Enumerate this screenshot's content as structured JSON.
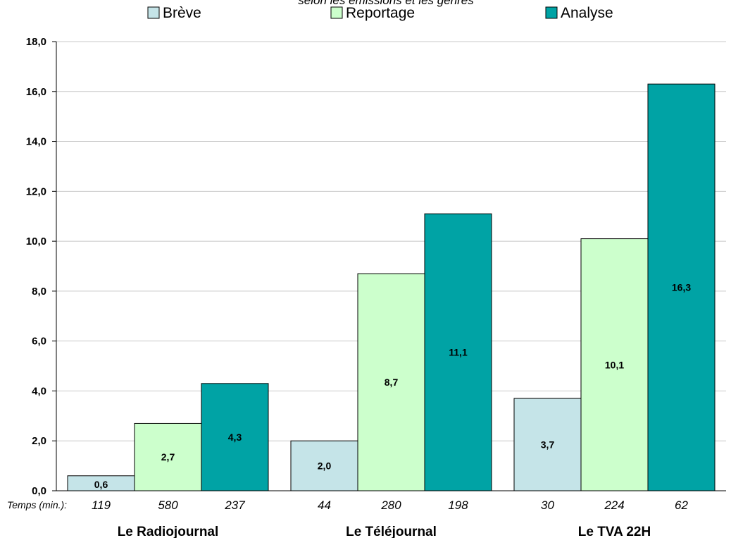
{
  "chart_data": {
    "type": "bar",
    "title": "selon les émissions et les genres",
    "categories": [
      "Le Radiojournal",
      "Le Téléjournal",
      "Le TVA 22H"
    ],
    "series": [
      {
        "name": "Brève",
        "color": "#c5e4e8",
        "values": [
          0.6,
          2.0,
          3.7
        ],
        "labels": [
          "0,6",
          "2,0",
          "3,7"
        ]
      },
      {
        "name": "Reportage",
        "color": "#ccffcc",
        "values": [
          2.7,
          8.7,
          10.1
        ],
        "labels": [
          "2,7",
          "8,7",
          "10,1"
        ]
      },
      {
        "name": "Analyse",
        "color": "#00a3a5",
        "values": [
          4.3,
          11.1,
          16.3
        ],
        "labels": [
          "4,3",
          "11,1",
          "16,3"
        ]
      }
    ],
    "ylim": [
      0,
      18
    ],
    "yticks": [
      "0,0",
      "2,0",
      "4,0",
      "6,0",
      "8,0",
      "10,0",
      "12,0",
      "14,0",
      "16,0",
      "18,0"
    ],
    "grid": true,
    "legend_position": "top",
    "time_caption": "Temps  (min.):",
    "time_values": [
      [
        "119",
        "580",
        "237"
      ],
      [
        "44",
        "280",
        "198"
      ],
      [
        "30",
        "224",
        "62"
      ]
    ]
  }
}
